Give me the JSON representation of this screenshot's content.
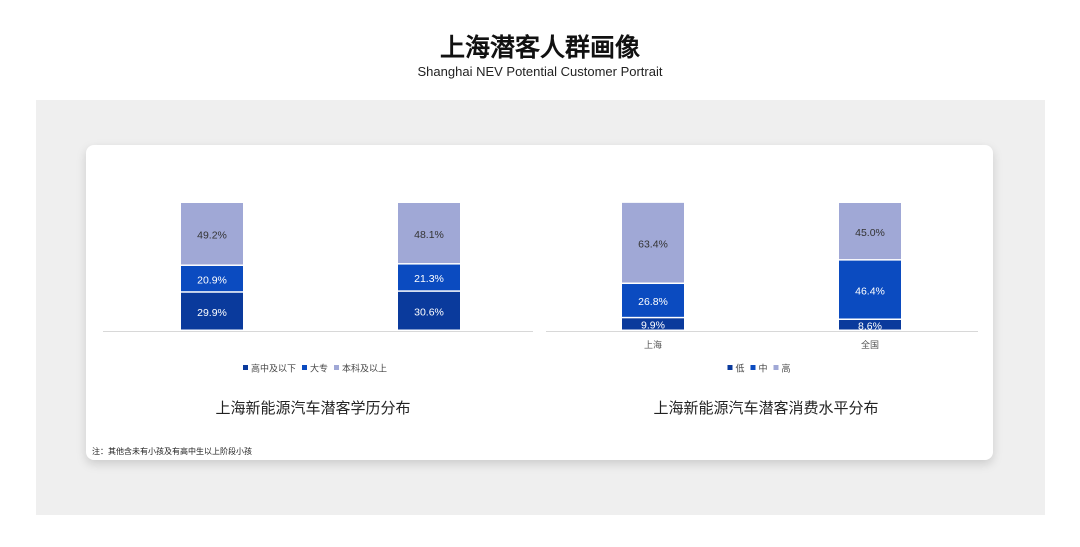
{
  "header": {
    "title": "上海潜客人群画像",
    "subtitle": "Shanghai NEV Potential Customer Portrait"
  },
  "note": "注：其他含未有小孩及有高中生以上阶段小孩",
  "chart_data": [
    {
      "type": "bar",
      "stacked": true,
      "title": "上海新能源汽车潜客学历分布",
      "categories": [
        "",
        ""
      ],
      "series": [
        {
          "name": "高中及以下",
          "color": "#0a3a9c",
          "values": [
            29.9,
            30.6
          ]
        },
        {
          "name": "大专",
          "color": "#0b4bc0",
          "values": [
            20.9,
            21.3
          ]
        },
        {
          "name": "本科及以上",
          "color": "#a0a8d6",
          "values": [
            49.2,
            48.1
          ]
        }
      ],
      "ylim": [
        0,
        100
      ],
      "legend": "bottom",
      "grid": false
    },
    {
      "type": "bar",
      "stacked": true,
      "title": "上海新能源汽车潜客消费水平分布",
      "categories": [
        "上海",
        "全国"
      ],
      "series": [
        {
          "name": "低",
          "color": "#0a3a9c",
          "values": [
            9.9,
            8.6
          ]
        },
        {
          "name": "中",
          "color": "#0b4bc0",
          "values": [
            26.8,
            46.4
          ]
        },
        {
          "name": "高",
          "color": "#a0a8d6",
          "values": [
            63.4,
            45.0
          ]
        }
      ],
      "ylim": [
        0,
        100
      ],
      "legend": "bottom",
      "grid": false
    }
  ]
}
